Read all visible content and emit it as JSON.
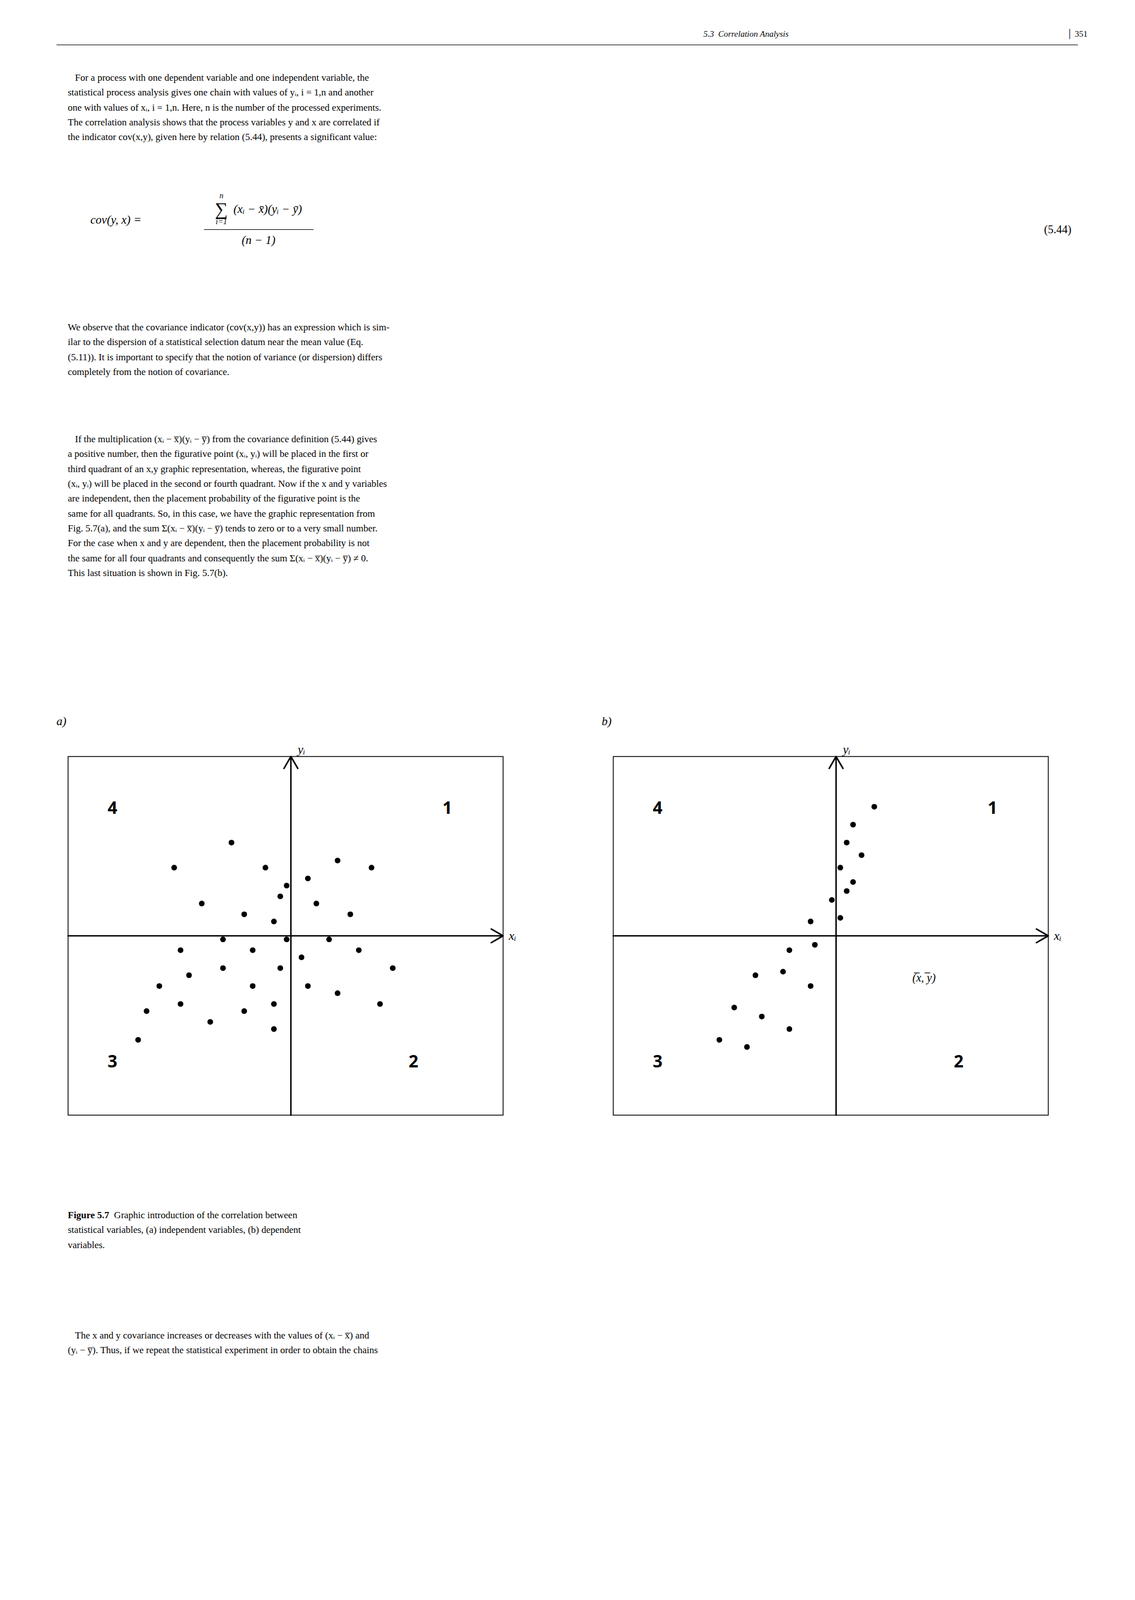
{
  "page": {
    "header": "5.3  Correlation Analysis",
    "page_number": "│ 351",
    "paragraphs": [
      "   For a process with one dependent variable and one independent variable, the\nstatistical process analysis gives one chain with values of yᵢ, i = 1,n and another\none with values of xᵢ, i = 1,n. Here, n is the number of the processed experiments.\nThe correlation analysis shows that the process variables y and x are correlated if\nthe indicator cov(x,y), given here by relation (5.44), presents a significant value:",
      "We observe that the covariance indicator (cov(x,y)) has an expression which is sim-\nilar to the dispersion of a statistical selection datum near the mean value (Eq.\n(5.11)). It is important to specify that the notion of variance (or dispersion) differs\ncompletely from the notion of covariance.",
      "   If the multiplication (xᵢ − x̅)(yᵢ − y̅) from the covariance definition (5.44) gives\na positive number, then the figurative point (xᵢ, yᵢ) will be placed in the first or\nthird quadrant of an x,y graphic representation, whereas, the figurative point\n(xᵢ, yᵢ) will be placed in the second or fourth quadrant. Now if the x and y variables\nare independent, then the placement probability of the figurative point is the\nsame for all quadrants. So, in this case, we have the graphic representation from\nFig. 5.7(a), and the sum Σ(xᵢ − x̅)(yᵢ − y̅) tends to zero or to a very small number.\nFor the case when x and y are dependent, then the placement probability is not\nthe same for all four quadrants and consequently the sum Σ(xᵢ − x̅)(yᵢ − y̅) ≠ 0.\nThis last situation is shown in Fig. 5.7(b).",
      "   The x and y covariance increases or decreases with the values of (xᵢ − x̅) and\n(yᵢ − y̅). Thus, if we repeat the statistical experiment in order to obtain the chains"
    ],
    "equation": {
      "lhs": "cov(y, x) =",
      "sum_symbol": "∑",
      "sum_lower": "i=1",
      "sum_upper": "n",
      "numerator": "(xᵢ − x̄)(yᵢ − ȳ)",
      "denominator": "(n − 1)",
      "number": "(5.44)"
    },
    "caption": {
      "label": "Figure 5.7",
      "text": "  Graphic introduction of the correlation between\nstatistical variables, (a) independent variables, (b) dependent\nvariables."
    }
  },
  "chart_data": [
    {
      "type": "scatter",
      "title": "a)",
      "x_label": "xᵢ",
      "y_label": "yᵢ",
      "xlim": [
        -1.05,
        1.0
      ],
      "ylim": [
        -1.0,
        1.0
      ],
      "tick_labels": false,
      "color": "#000000",
      "annotations": [
        "4",
        "1",
        "3",
        "2"
      ],
      "x": [
        -0.55,
        -0.28,
        -0.12,
        -0.02,
        -0.42,
        -0.22,
        -0.08,
        -0.05,
        0.08,
        0.22,
        0.38,
        0.12,
        0.28,
        -0.52,
        -0.32,
        -0.18,
        -0.02,
        0.05,
        0.18,
        0.32,
        0.48,
        -0.62,
        -0.48,
        -0.32,
        -0.18,
        -0.05,
        -0.68,
        -0.52,
        -0.38,
        -0.22,
        -0.08,
        0.08,
        0.22,
        0.42,
        -0.72,
        -0.08
      ],
      "values": [
        0.38,
        0.52,
        0.38,
        0.28,
        0.18,
        0.12,
        0.08,
        0.22,
        0.32,
        0.42,
        0.38,
        0.18,
        0.12,
        -0.08,
        -0.02,
        -0.08,
        -0.02,
        -0.12,
        -0.02,
        -0.08,
        -0.18,
        -0.28,
        -0.22,
        -0.18,
        -0.28,
        -0.18,
        -0.42,
        -0.38,
        -0.48,
        -0.42,
        -0.38,
        -0.28,
        -0.32,
        -0.38,
        -0.58,
        -0.52
      ]
    },
    {
      "type": "scatter",
      "title": "b)",
      "x_label": "xᵢ",
      "y_label": "yᵢ",
      "xlim": [
        -1.05,
        1.0
      ],
      "ylim": [
        -1.0,
        1.0
      ],
      "tick_labels": false,
      "color": "#000000",
      "annotations": [
        "4",
        "1",
        "3",
        "2",
        "(̅x, ̅y)"
      ],
      "x": [
        0.08,
        0.18,
        0.05,
        0.02,
        0.12,
        0.08,
        -0.02,
        0.05,
        -0.12,
        0.02,
        -0.22,
        -0.1,
        -0.38,
        -0.25,
        -0.12,
        -0.48,
        -0.35,
        -0.22,
        -0.55,
        -0.42
      ],
      "values": [
        0.62,
        0.72,
        0.52,
        0.38,
        0.45,
        0.3,
        0.2,
        0.25,
        0.08,
        0.1,
        -0.08,
        -0.05,
        -0.22,
        -0.2,
        -0.28,
        -0.4,
        -0.45,
        -0.52,
        -0.58,
        -0.62
      ]
    }
  ]
}
